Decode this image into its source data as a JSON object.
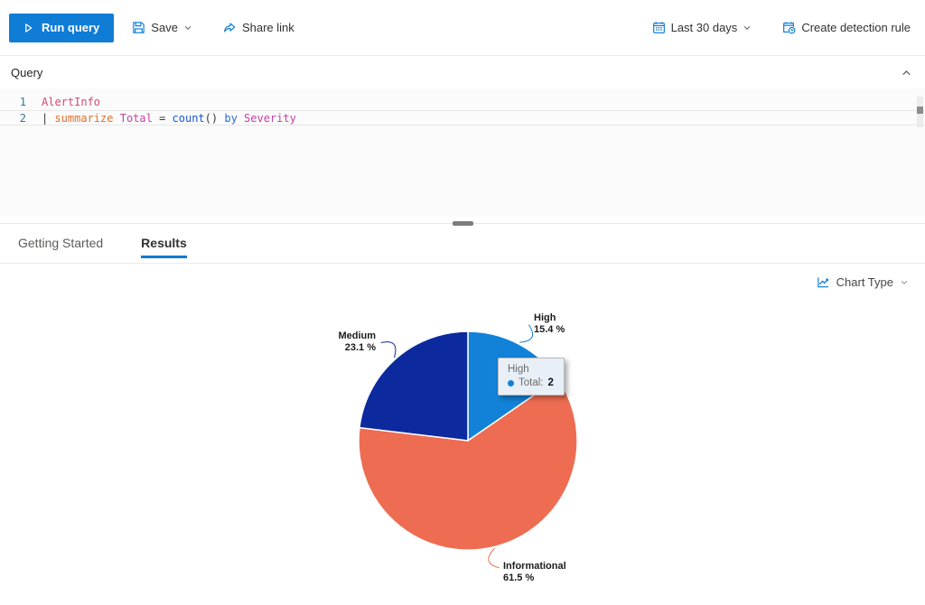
{
  "colors": {
    "accent": "#0078d4"
  },
  "toolbar": {
    "run_query": "Run query",
    "save": "Save",
    "share_link": "Share link",
    "time_range": "Last 30 days",
    "create_detection_rule": "Create detection rule"
  },
  "query_panel": {
    "title": "Query",
    "code": {
      "lines": [
        {
          "number": "1",
          "current": false,
          "tokens": [
            {
              "t": "AlertInfo",
              "c": "table"
            }
          ]
        },
        {
          "number": "2",
          "current": true,
          "tokens": [
            {
              "t": "| ",
              "c": "plain"
            },
            {
              "t": "summarize",
              "c": "op"
            },
            {
              "t": " ",
              "c": "plain"
            },
            {
              "t": "Total",
              "c": "col"
            },
            {
              "t": " = ",
              "c": "plain"
            },
            {
              "t": "count",
              "c": "fn"
            },
            {
              "t": "() ",
              "c": "plain"
            },
            {
              "t": "by",
              "c": "kw"
            },
            {
              "t": " ",
              "c": "plain"
            },
            {
              "t": "Severity",
              "c": "col"
            }
          ]
        }
      ]
    }
  },
  "tabs": [
    {
      "label": "Getting Started",
      "active": false
    },
    {
      "label": "Results",
      "active": true
    }
  ],
  "results": {
    "chart_type_label": "Chart Type"
  },
  "tooltip": {
    "title": "High",
    "field": "Total:",
    "value": "2",
    "bullet_color": "#1282d8"
  },
  "chart_data": {
    "type": "pie",
    "series_name": "Total",
    "direction": "clockwise",
    "start_angle_deg": 0,
    "label_format": "{label} {percent} %",
    "slices": [
      {
        "label": "High",
        "percent": 15.4,
        "total": 2,
        "color": "#1282d8"
      },
      {
        "label": "Informational",
        "percent": 61.5,
        "color": "#ee6c52"
      },
      {
        "label": "Medium",
        "percent": 23.1,
        "color": "#0c2a9e"
      }
    ]
  }
}
